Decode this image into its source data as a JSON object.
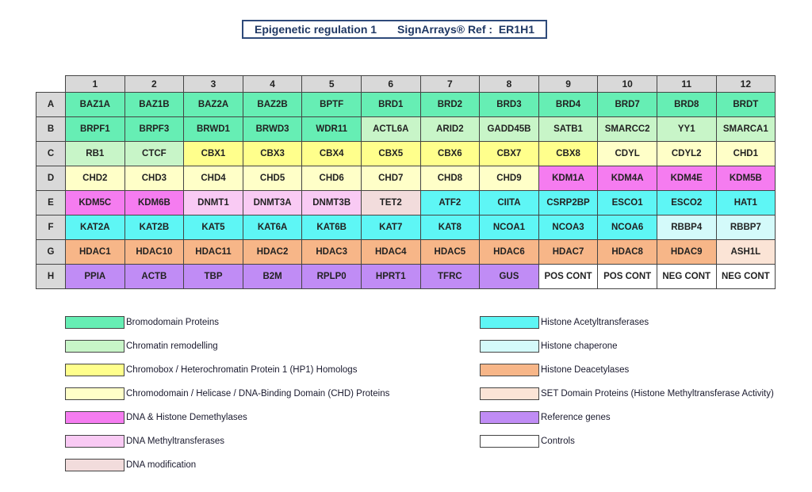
{
  "title": {
    "name": "Epigenetic regulation 1",
    "ref_label": "SignArrays® Ref :",
    "ref": "ER1H1"
  },
  "categories": {
    "bromo": {
      "label": "Bromodomain Proteins",
      "color": "#66eeb4"
    },
    "remod": {
      "label": "Chromatin remodelling",
      "color": "#c8f5c8"
    },
    "cbx": {
      "label": "Chromobox / Heterochromatin Protein 1 (HP1) Homologs",
      "color": "#ffff8c"
    },
    "chd": {
      "label": "Chromodomain / Helicase / DNA-Binding Domain (CHD) Proteins",
      "color": "#ffffc8"
    },
    "demeth": {
      "label": "DNA & Histone Demethylases",
      "color": "#f57cf0"
    },
    "dnmt": {
      "label": "DNA Methyltransferases",
      "color": "#f9caf4"
    },
    "mod": {
      "label": "DNA modification",
      "color": "#f2dcdc"
    },
    "hat": {
      "label": "Histone Acetyltransferases",
      "color": "#5ef6f5"
    },
    "chap": {
      "label": "Histone chaperone",
      "color": "#d4fafa"
    },
    "hdac": {
      "label": "Histone Deacetylases",
      "color": "#f7b688"
    },
    "set": {
      "label": "SET Domain Proteins (Histone Methyltransferase Activity)",
      "color": "#fbe4d6"
    },
    "ref": {
      "label": "Reference genes",
      "color": "#c08cf5"
    },
    "ctrl": {
      "label": "Controls",
      "color": "#ffffff"
    }
  },
  "legend_left": [
    "bromo",
    "remod",
    "cbx",
    "chd",
    "demeth",
    "dnmt",
    "mod"
  ],
  "legend_right": [
    "hat",
    "chap",
    "hdac",
    "set",
    "ref",
    "ctrl"
  ],
  "columns": [
    "1",
    "2",
    "3",
    "4",
    "5",
    "6",
    "7",
    "8",
    "9",
    "10",
    "11",
    "12"
  ],
  "rows": [
    {
      "id": "A",
      "cells": [
        [
          "BAZ1A",
          "bromo"
        ],
        [
          "BAZ1B",
          "bromo"
        ],
        [
          "BAZ2A",
          "bromo"
        ],
        [
          "BAZ2B",
          "bromo"
        ],
        [
          "BPTF",
          "bromo"
        ],
        [
          "BRD1",
          "bromo"
        ],
        [
          "BRD2",
          "bromo"
        ],
        [
          "BRD3",
          "bromo"
        ],
        [
          "BRD4",
          "bromo"
        ],
        [
          "BRD7",
          "bromo"
        ],
        [
          "BRD8",
          "bromo"
        ],
        [
          "BRDT",
          "bromo"
        ]
      ]
    },
    {
      "id": "B",
      "cells": [
        [
          "BRPF1",
          "bromo"
        ],
        [
          "BRPF3",
          "bromo"
        ],
        [
          "BRWD1",
          "bromo"
        ],
        [
          "BRWD3",
          "bromo"
        ],
        [
          "WDR11",
          "bromo"
        ],
        [
          "ACTL6A",
          "remod"
        ],
        [
          "ARID2",
          "remod"
        ],
        [
          "GADD45B",
          "remod"
        ],
        [
          "SATB1",
          "remod"
        ],
        [
          "SMARCC2",
          "remod"
        ],
        [
          "YY1",
          "remod"
        ],
        [
          "SMARCA1",
          "remod"
        ]
      ]
    },
    {
      "id": "C",
      "cells": [
        [
          "RB1",
          "remod"
        ],
        [
          "CTCF",
          "remod"
        ],
        [
          "CBX1",
          "cbx"
        ],
        [
          "CBX3",
          "cbx"
        ],
        [
          "CBX4",
          "cbx"
        ],
        [
          "CBX5",
          "cbx"
        ],
        [
          "CBX6",
          "cbx"
        ],
        [
          "CBX7",
          "cbx"
        ],
        [
          "CBX8",
          "cbx"
        ],
        [
          "CDYL",
          "chd"
        ],
        [
          "CDYL2",
          "chd"
        ],
        [
          "CHD1",
          "chd"
        ]
      ]
    },
    {
      "id": "D",
      "cells": [
        [
          "CHD2",
          "chd"
        ],
        [
          "CHD3",
          "chd"
        ],
        [
          "CHD4",
          "chd"
        ],
        [
          "CHD5",
          "chd"
        ],
        [
          "CHD6",
          "chd"
        ],
        [
          "CHD7",
          "chd"
        ],
        [
          "CHD8",
          "chd"
        ],
        [
          "CHD9",
          "chd"
        ],
        [
          "KDM1A",
          "demeth"
        ],
        [
          "KDM4A",
          "demeth"
        ],
        [
          "KDM4E",
          "demeth"
        ],
        [
          "KDM5B",
          "demeth"
        ]
      ]
    },
    {
      "id": "E",
      "cells": [
        [
          "KDM5C",
          "demeth"
        ],
        [
          "KDM6B",
          "demeth"
        ],
        [
          "DNMT1",
          "dnmt"
        ],
        [
          "DNMT3A",
          "dnmt"
        ],
        [
          "DNMT3B",
          "dnmt"
        ],
        [
          "TET2",
          "mod"
        ],
        [
          "ATF2",
          "hat"
        ],
        [
          "CIITA",
          "hat"
        ],
        [
          "CSRP2BP",
          "hat"
        ],
        [
          "ESCO1",
          "hat"
        ],
        [
          "ESCO2",
          "hat"
        ],
        [
          "HAT1",
          "hat"
        ]
      ]
    },
    {
      "id": "F",
      "cells": [
        [
          "KAT2A",
          "hat"
        ],
        [
          "KAT2B",
          "hat"
        ],
        [
          "KAT5",
          "hat"
        ],
        [
          "KAT6A",
          "hat"
        ],
        [
          "KAT6B",
          "hat"
        ],
        [
          "KAT7",
          "hat"
        ],
        [
          "KAT8",
          "hat"
        ],
        [
          "NCOA1",
          "hat"
        ],
        [
          "NCOA3",
          "hat"
        ],
        [
          "NCOA6",
          "hat"
        ],
        [
          "RBBP4",
          "chap"
        ],
        [
          "RBBP7",
          "chap"
        ]
      ]
    },
    {
      "id": "G",
      "cells": [
        [
          "HDAC1",
          "hdac"
        ],
        [
          "HDAC10",
          "hdac"
        ],
        [
          "HDAC11",
          "hdac"
        ],
        [
          "HDAC2",
          "hdac"
        ],
        [
          "HDAC3",
          "hdac"
        ],
        [
          "HDAC4",
          "hdac"
        ],
        [
          "HDAC5",
          "hdac"
        ],
        [
          "HDAC6",
          "hdac"
        ],
        [
          "HDAC7",
          "hdac"
        ],
        [
          "HDAC8",
          "hdac"
        ],
        [
          "HDAC9",
          "hdac"
        ],
        [
          "ASH1L",
          "set"
        ]
      ]
    },
    {
      "id": "H",
      "cells": [
        [
          "PPIA",
          "ref"
        ],
        [
          "ACTB",
          "ref"
        ],
        [
          "TBP",
          "ref"
        ],
        [
          "B2M",
          "ref"
        ],
        [
          "RPLP0",
          "ref"
        ],
        [
          "HPRT1",
          "ref"
        ],
        [
          "TFRC",
          "ref"
        ],
        [
          "GUS",
          "ref"
        ],
        [
          "POS CONT",
          "ctrl"
        ],
        [
          "POS CONT",
          "ctrl"
        ],
        [
          "NEG CONT",
          "ctrl"
        ],
        [
          "NEG CONT",
          "ctrl"
        ]
      ]
    }
  ]
}
